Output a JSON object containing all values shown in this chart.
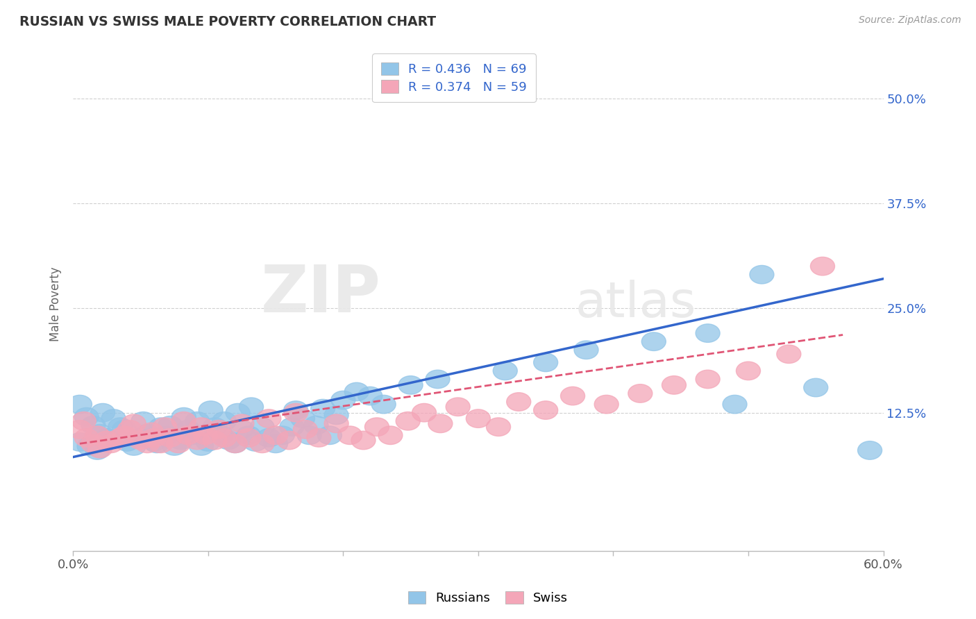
{
  "title": "RUSSIAN VS SWISS MALE POVERTY CORRELATION CHART",
  "source": "Source: ZipAtlas.com",
  "ylabel": "Male Poverty",
  "ytick_labels": [
    "12.5%",
    "25.0%",
    "37.5%",
    "50.0%"
  ],
  "ytick_values": [
    0.125,
    0.25,
    0.375,
    0.5
  ],
  "xlim": [
    0.0,
    0.62
  ],
  "ylim": [
    -0.04,
    0.55
  ],
  "plot_xlim": [
    0.0,
    0.6
  ],
  "legend_r_russian": "R = 0.436",
  "legend_n_russian": "N = 69",
  "legend_r_swiss": "R = 0.374",
  "legend_n_swiss": "N = 59",
  "legend_label_russians": "Russians",
  "legend_label_swiss": "Swiss",
  "russian_color": "#92c5e8",
  "swiss_color": "#f4a6b8",
  "russian_line_color": "#3366cc",
  "swiss_line_color": "#e05575",
  "watermark_zip": "ZIP",
  "watermark_atlas": "atlas",
  "background_color": "#ffffff",
  "grid_color": "#d0d0d0",
  "russian_scatter_x": [
    0.005,
    0.01,
    0.015,
    0.02,
    0.025,
    0.005,
    0.012,
    0.018,
    0.022,
    0.03,
    0.035,
    0.025,
    0.04,
    0.045,
    0.05,
    0.038,
    0.055,
    0.06,
    0.052,
    0.065,
    0.07,
    0.062,
    0.075,
    0.08,
    0.072,
    0.085,
    0.09,
    0.082,
    0.095,
    0.1,
    0.092,
    0.105,
    0.11,
    0.102,
    0.115,
    0.12,
    0.112,
    0.125,
    0.13,
    0.135,
    0.122,
    0.14,
    0.145,
    0.132,
    0.15,
    0.155,
    0.162,
    0.17,
    0.175,
    0.165,
    0.18,
    0.19,
    0.185,
    0.2,
    0.195,
    0.21,
    0.22,
    0.23,
    0.25,
    0.27,
    0.32,
    0.35,
    0.38,
    0.43,
    0.47,
    0.49,
    0.51,
    0.55,
    0.59
  ],
  "russian_scatter_y": [
    0.135,
    0.12,
    0.11,
    0.1,
    0.095,
    0.09,
    0.085,
    0.08,
    0.125,
    0.118,
    0.108,
    0.095,
    0.09,
    0.085,
    0.095,
    0.105,
    0.1,
    0.09,
    0.115,
    0.108,
    0.098,
    0.088,
    0.085,
    0.092,
    0.11,
    0.105,
    0.098,
    0.12,
    0.085,
    0.09,
    0.115,
    0.108,
    0.098,
    0.128,
    0.092,
    0.088,
    0.115,
    0.105,
    0.098,
    0.09,
    0.125,
    0.108,
    0.095,
    0.132,
    0.088,
    0.098,
    0.108,
    0.118,
    0.098,
    0.128,
    0.11,
    0.098,
    0.13,
    0.14,
    0.122,
    0.15,
    0.145,
    0.135,
    0.158,
    0.165,
    0.175,
    0.185,
    0.2,
    0.21,
    0.22,
    0.135,
    0.29,
    0.155,
    0.08
  ],
  "swiss_scatter_x": [
    0.005,
    0.01,
    0.015,
    0.02,
    0.025,
    0.008,
    0.018,
    0.028,
    0.035,
    0.042,
    0.038,
    0.05,
    0.055,
    0.045,
    0.06,
    0.065,
    0.058,
    0.072,
    0.078,
    0.068,
    0.085,
    0.092,
    0.082,
    0.098,
    0.105,
    0.095,
    0.112,
    0.12,
    0.108,
    0.13,
    0.14,
    0.125,
    0.15,
    0.16,
    0.145,
    0.172,
    0.182,
    0.165,
    0.195,
    0.205,
    0.215,
    0.225,
    0.235,
    0.248,
    0.26,
    0.272,
    0.285,
    0.3,
    0.315,
    0.33,
    0.35,
    0.37,
    0.395,
    0.42,
    0.445,
    0.47,
    0.5,
    0.53,
    0.555
  ],
  "swiss_scatter_y": [
    0.105,
    0.095,
    0.088,
    0.082,
    0.092,
    0.115,
    0.098,
    0.088,
    0.095,
    0.105,
    0.098,
    0.092,
    0.088,
    0.112,
    0.095,
    0.088,
    0.102,
    0.095,
    0.088,
    0.108,
    0.098,
    0.092,
    0.115,
    0.098,
    0.092,
    0.108,
    0.095,
    0.088,
    0.105,
    0.095,
    0.088,
    0.112,
    0.098,
    0.092,
    0.118,
    0.105,
    0.095,
    0.125,
    0.112,
    0.098,
    0.092,
    0.108,
    0.098,
    0.115,
    0.125,
    0.112,
    0.132,
    0.118,
    0.108,
    0.138,
    0.128,
    0.145,
    0.135,
    0.148,
    0.158,
    0.165,
    0.175,
    0.195,
    0.3
  ],
  "russian_line_x": [
    0.0,
    0.6
  ],
  "russian_line_y": [
    0.072,
    0.285
  ],
  "swiss_line_x": [
    0.005,
    0.57
  ],
  "swiss_line_y": [
    0.088,
    0.218
  ],
  "xtick_positions": [
    0.0,
    0.1,
    0.2,
    0.3,
    0.4,
    0.5,
    0.6
  ],
  "xtick_show_labels": [
    true,
    false,
    false,
    false,
    false,
    false,
    true
  ],
  "xtick_label_values": [
    "0.0%",
    "",
    "",
    "",
    "",
    "",
    "60.0%"
  ]
}
